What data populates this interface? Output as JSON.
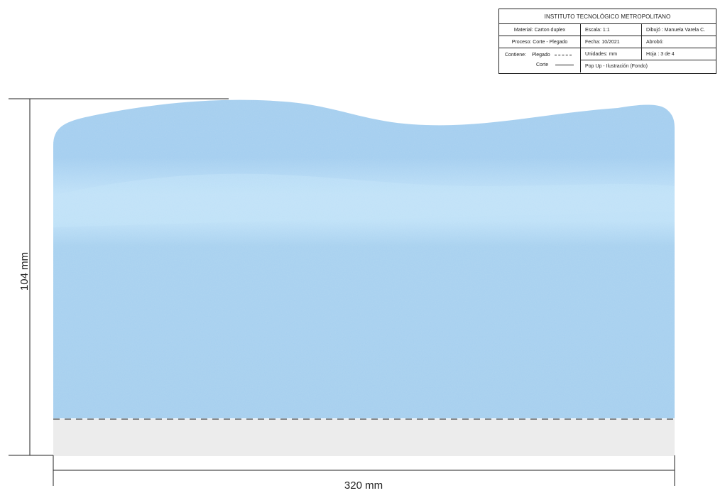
{
  "title_block": {
    "institution": "INSTITUTO TECNOLÓGICO METROPOLITANO",
    "material": "Material: Carton duplex",
    "escala": "Escala: 1:1",
    "dibujo": "Dibujó : Manuela Varela C.",
    "proceso": "Proceso: Corte - Plegado",
    "fecha": "Fecha: 10/2021",
    "aprobo": "Abrobó:",
    "contiene_label": "Contiene:",
    "plegado_label": "Plegado",
    "corte_label": "Corte",
    "unidades": "Unidades: mm",
    "hoja": "Hoja : 3 de 4",
    "descripcion": "Pop Up - Ilustración  (Fondo)"
  },
  "dimensions": {
    "height_label": "104 mm",
    "width_label": "320 mm"
  },
  "colors": {
    "sky_top": "#a3cdee",
    "sky_band": "#bde0f7",
    "sky_body": "#a4cfee",
    "fold_tab": "#ececec",
    "line": "#222222"
  },
  "line_types": {
    "fold": "dashed",
    "cut": "solid"
  }
}
